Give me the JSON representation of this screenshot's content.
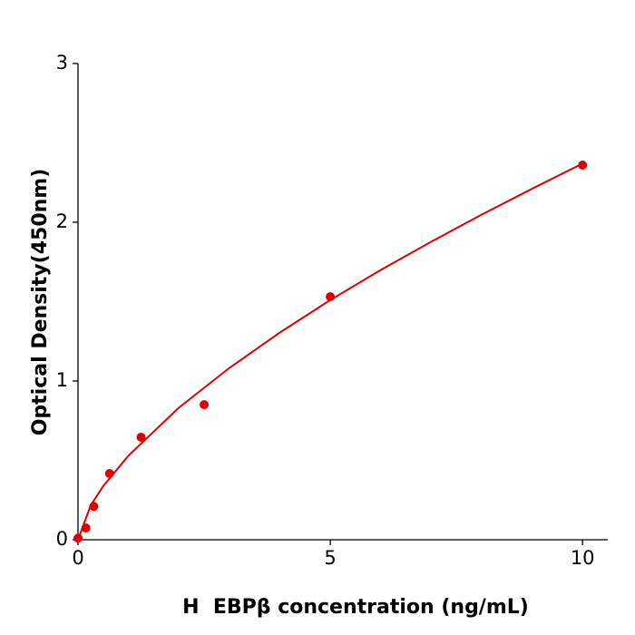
{
  "chart_data": {
    "type": "scatter",
    "xlabel": "H  EBPβ concentration (ng/mL)",
    "ylabel": "Optical Density(450nm)",
    "x": [
      0,
      0.156,
      0.312,
      0.625,
      1.25,
      2.5,
      5,
      10
    ],
    "values": [
      0.01,
      0.074,
      0.21,
      0.417,
      0.646,
      0.851,
      1.531,
      2.36
    ],
    "color": "#e00000",
    "fit": {
      "x": [
        0,
        0.25,
        0.5,
        1,
        2,
        3,
        4,
        5,
        6,
        7,
        8,
        9,
        10
      ],
      "values": [
        0,
        0.215,
        0.338,
        0.53,
        0.832,
        1.082,
        1.305,
        1.51,
        1.699,
        1.877,
        2.048,
        2.211,
        2.37
      ],
      "color": "#e00000"
    },
    "xlim": [
      0,
      10.5
    ],
    "ylim": [
      0,
      3
    ],
    "xticks": [
      0,
      5,
      10
    ],
    "yticks": [
      0,
      1,
      2,
      3
    ]
  }
}
